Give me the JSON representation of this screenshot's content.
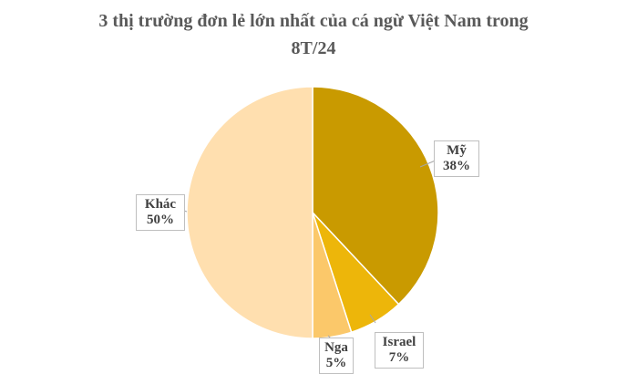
{
  "chart_data": {
    "type": "pie",
    "title_line1": "3 thị trường đơn lẻ lớn nhất của cá ngừ Việt Nam trong",
    "title_line2": "8T/24",
    "slices": [
      {
        "label": "Mỹ",
        "value": 38,
        "value_label": "38%",
        "color": "#C99A00"
      },
      {
        "label": "Israel",
        "value": 7,
        "value_label": "7%",
        "color": "#EDB60A"
      },
      {
        "label": "Nga",
        "value": 5,
        "value_label": "5%",
        "color": "#FBC86A"
      },
      {
        "label": "Khác",
        "value": 50,
        "value_label": "50%",
        "color": "#FFDFAF"
      }
    ],
    "legend": "none",
    "data_labels": "outside with leader lines"
  }
}
